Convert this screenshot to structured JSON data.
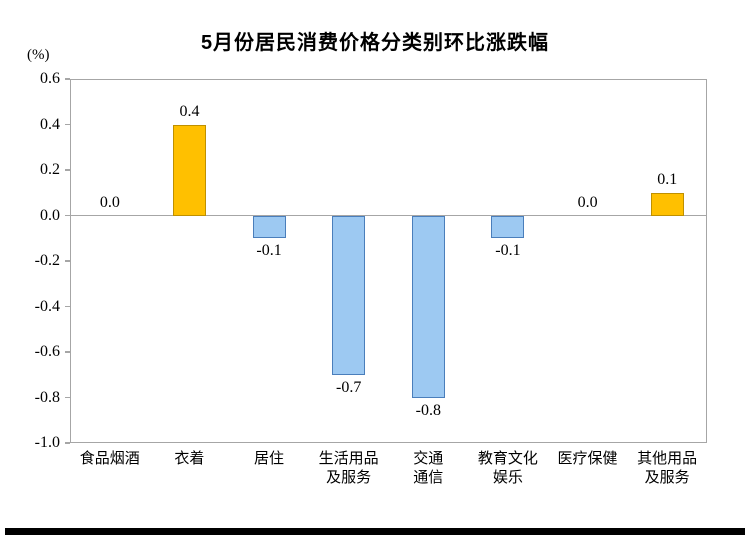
{
  "chart_data": {
    "type": "bar",
    "title": "5月份居民消费价格分类别环比涨跌幅",
    "unit_label": "(%)",
    "categories": [
      "食品烟酒",
      "衣着",
      "居住",
      "生活用品及服务",
      "交通通信",
      "教育文化娱乐",
      "医疗保健",
      "其他用品及服务"
    ],
    "category_lines": [
      [
        "食品烟酒"
      ],
      [
        "衣着"
      ],
      [
        "居住"
      ],
      [
        "生活用品",
        "及服务"
      ],
      [
        "交通",
        "通信"
      ],
      [
        "教育文化",
        "娱乐"
      ],
      [
        "医疗保健"
      ],
      [
        "其他用品",
        "及服务"
      ]
    ],
    "values": [
      0.0,
      0.4,
      -0.1,
      -0.7,
      -0.8,
      -0.1,
      0.0,
      0.1
    ],
    "value_labels": [
      "0.0",
      "0.4",
      "-0.1",
      "-0.7",
      "-0.8",
      "-0.1",
      "0.0",
      "0.1"
    ],
    "xlabel": "",
    "ylabel": "(%)",
    "ylim": [
      -1.0,
      0.6
    ],
    "ytick_step": 0.2,
    "yticks": [
      0.6,
      0.4,
      0.2,
      0.0,
      -0.2,
      -0.4,
      -0.6,
      -0.8,
      -1.0
    ],
    "ytick_labels": [
      "0.6",
      "0.4",
      "0.2",
      "0.0",
      "-0.2",
      "-0.4",
      "-0.6",
      "-0.8",
      "-1.0"
    ],
    "grid": false,
    "legend": "none",
    "colors": {
      "positive_fill": "#FFC000",
      "positive_border": "#BF9000",
      "negative_fill": "#9DC9F2",
      "negative_border": "#4A7EBB",
      "axis_border": "#A6A6A6",
      "zero_line": "#A6A6A6",
      "text": "#000000",
      "footer_bar": "#000000"
    }
  }
}
